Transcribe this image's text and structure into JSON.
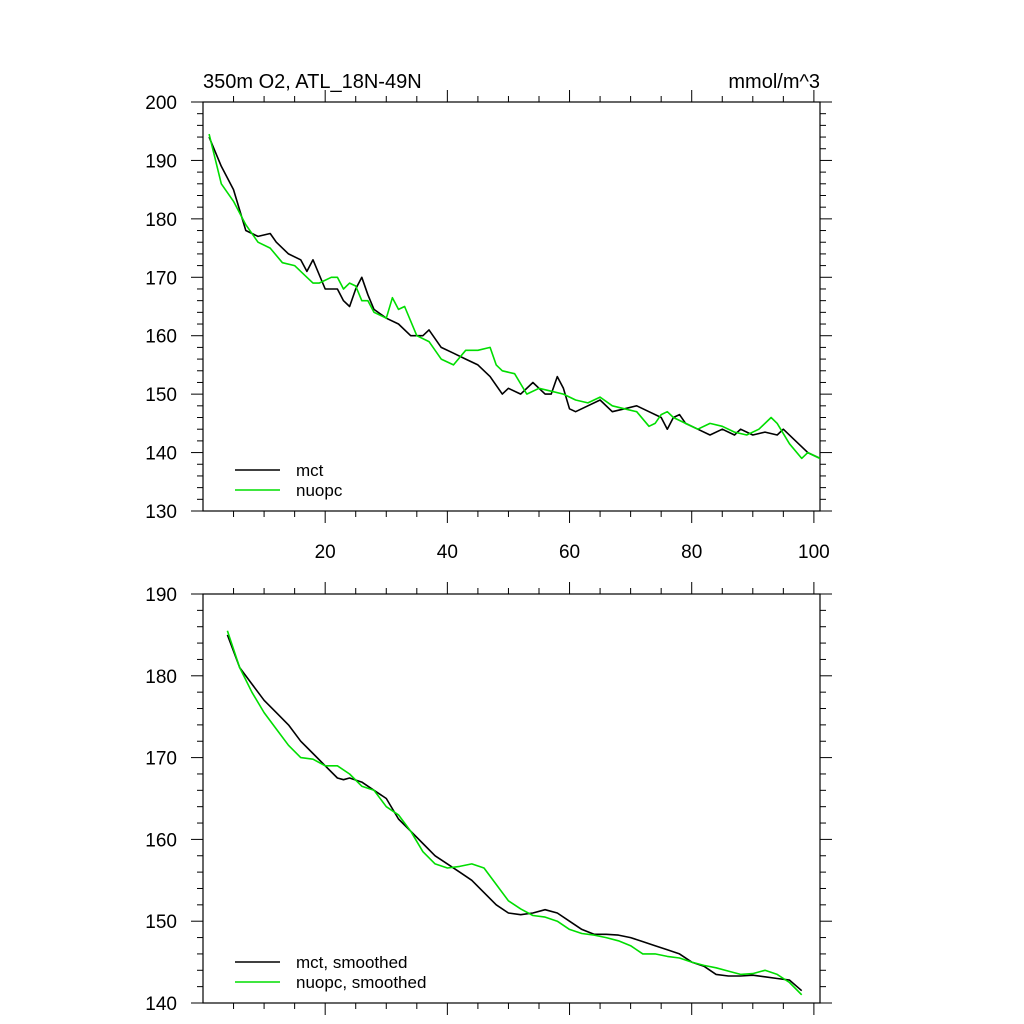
{
  "chart_data": [
    {
      "type": "line",
      "title": "350m O2, ATL_18N-49N",
      "units_label": "mmol/m^3",
      "xlim": [
        0,
        101
      ],
      "ylim": [
        130,
        200
      ],
      "x_ticks": [
        20,
        40,
        60,
        80,
        100
      ],
      "x_tick_labels": [
        "20",
        "40",
        "60",
        "80",
        "100"
      ],
      "y_ticks": [
        130,
        140,
        150,
        160,
        170,
        180,
        190,
        200
      ],
      "y_tick_labels": [
        "130",
        "140",
        "150",
        "160",
        "170",
        "180",
        "190",
        "200"
      ],
      "legend_position": "bottom-left",
      "series": [
        {
          "name": "mct",
          "color": "#000000",
          "x": [
            1,
            3,
            5,
            7,
            9,
            11,
            12,
            14,
            16,
            17,
            18,
            20,
            22,
            23,
            24,
            25,
            26,
            27,
            28,
            30,
            32,
            34,
            36,
            37,
            39,
            41,
            43,
            45,
            47,
            49,
            50,
            52,
            54,
            56,
            57,
            58,
            59,
            60,
            61,
            63,
            65,
            67,
            69,
            71,
            73,
            75,
            76,
            77,
            78,
            79,
            81,
            83,
            85,
            87,
            88,
            90,
            92,
            94,
            95,
            97,
            99,
            101
          ],
          "y": [
            194,
            189,
            185,
            178,
            177,
            177.5,
            176,
            174,
            173,
            171,
            173,
            168,
            168,
            166,
            165,
            168,
            170,
            167,
            164.5,
            163,
            162,
            160,
            160,
            161,
            158,
            157,
            156,
            155,
            153,
            150,
            151,
            150,
            152,
            150,
            150,
            153,
            151,
            147.5,
            147,
            148,
            149,
            147,
            147.5,
            148,
            147,
            146,
            144,
            146,
            146.5,
            145,
            144,
            143,
            144,
            143,
            144,
            143,
            143.5,
            143,
            144,
            142,
            140,
            139
          ]
        },
        {
          "name": "nuopc",
          "color": "#00dd00",
          "x": [
            1,
            3,
            5,
            7,
            9,
            11,
            13,
            15,
            17,
            18,
            19,
            21,
            22,
            23,
            24,
            25,
            26,
            27,
            28,
            30,
            31,
            32,
            33,
            35,
            37,
            39,
            41,
            43,
            45,
            47,
            48,
            49,
            51,
            53,
            55,
            57,
            59,
            61,
            63,
            65,
            67,
            69,
            71,
            73,
            74,
            75,
            76,
            77,
            79,
            81,
            83,
            85,
            87,
            89,
            91,
            93,
            94,
            96,
            98,
            99,
            101
          ],
          "y": [
            194.5,
            186,
            183,
            179,
            176,
            175,
            172.5,
            172,
            170,
            169,
            169,
            170,
            170,
            168,
            169,
            168.5,
            166,
            166,
            164,
            163,
            166.5,
            164.5,
            165,
            160,
            159,
            156,
            155,
            157.5,
            157.5,
            158,
            155,
            154,
            153.5,
            150,
            151,
            150.5,
            150,
            149,
            148.5,
            149.5,
            148,
            147.5,
            147,
            144.5,
            145,
            146.5,
            147,
            146,
            145,
            144,
            145,
            144.5,
            143.5,
            143,
            144,
            146,
            145,
            141.5,
            139,
            140,
            139
          ]
        }
      ]
    },
    {
      "type": "line",
      "title": "",
      "xlim": [
        0,
        101
      ],
      "ylim": [
        140,
        190
      ],
      "x_ticks": [
        20,
        40,
        60,
        80,
        100
      ],
      "y_ticks": [
        140,
        150,
        160,
        170,
        180,
        190
      ],
      "y_tick_labels": [
        "140",
        "150",
        "160",
        "170",
        "180",
        "190"
      ],
      "legend_position": "bottom-left",
      "series": [
        {
          "name": "mct, smoothed",
          "color": "#000000",
          "x": [
            4,
            6,
            8,
            10,
            12,
            14,
            16,
            18,
            20,
            22,
            23,
            24,
            26,
            28,
            30,
            32,
            34,
            36,
            38,
            40,
            42,
            44,
            46,
            48,
            50,
            52,
            54,
            56,
            58,
            60,
            62,
            64,
            66,
            68,
            70,
            72,
            74,
            76,
            78,
            80,
            82,
            84,
            86,
            88,
            90,
            92,
            94,
            96,
            98
          ],
          "y": [
            185,
            181,
            179,
            177,
            175.5,
            174,
            172,
            170.5,
            169,
            167.5,
            167.3,
            167.5,
            167,
            166,
            165,
            162.5,
            161,
            159.5,
            158,
            157,
            156,
            155,
            153.5,
            152,
            151,
            150.8,
            151,
            151.4,
            151,
            150,
            149,
            148.4,
            148.4,
            148.3,
            148,
            147.5,
            147,
            146.5,
            146,
            145,
            144.5,
            143.5,
            143.3,
            143.3,
            143.4,
            143.2,
            143,
            142.8,
            141.5
          ]
        },
        {
          "name": "nuopc, smoothed",
          "color": "#00dd00",
          "x": [
            4,
            6,
            8,
            10,
            12,
            14,
            16,
            18,
            20,
            22,
            24,
            26,
            28,
            30,
            32,
            34,
            36,
            38,
            40,
            42,
            44,
            46,
            48,
            50,
            52,
            54,
            56,
            58,
            60,
            62,
            64,
            66,
            68,
            70,
            72,
            74,
            76,
            78,
            80,
            82,
            84,
            86,
            88,
            90,
            92,
            94,
            96,
            98
          ],
          "y": [
            185.5,
            181,
            178,
            175.5,
            173.5,
            171.5,
            170,
            169.8,
            169,
            169,
            168,
            166.5,
            166,
            164,
            163,
            161,
            158.5,
            157,
            156.5,
            156.7,
            157,
            156.5,
            154.5,
            152.5,
            151.5,
            150.7,
            150.5,
            150,
            149,
            148.5,
            148.3,
            148,
            147.6,
            147,
            146,
            146,
            145.7,
            145.5,
            145,
            144.6,
            144.3,
            143.9,
            143.5,
            143.6,
            144,
            143.5,
            142.5,
            141
          ]
        }
      ]
    }
  ]
}
